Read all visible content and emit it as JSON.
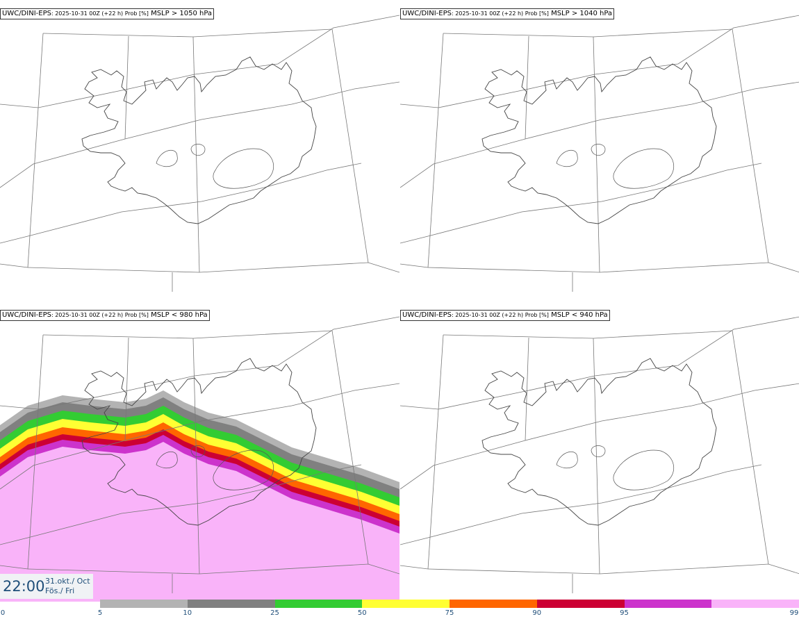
{
  "panels": [
    {
      "model": "UWC/DINI-EPS",
      "run": ": 2025-10-31 00Z (+22 h) Prob [%]",
      "threshold": "MSLP > 1050 hPa",
      "filled": false
    },
    {
      "model": "UWC/DINI-EPS",
      "run": ": 2025-10-31 00Z (+22 h) Prob [%]",
      "threshold": "MSLP > 1040 hPa",
      "filled": false
    },
    {
      "model": "UWC/DINI-EPS",
      "run": ": 2025-10-31 00Z (+22 h) Prob [%]",
      "threshold": "MSLP < 980 hPa",
      "filled": true
    },
    {
      "model": "UWC/DINI-EPS",
      "run": ": 2025-10-31 00Z (+22 h) Prob [%]",
      "threshold": "MSLP < 940 hPa",
      "filled": false
    }
  ],
  "valid_time": {
    "time": "22:00",
    "date": "31.okt./ Oct",
    "day": "Fös./ Fri"
  },
  "colorbar": {
    "ticks": [
      "0",
      "5",
      "10",
      "25",
      "50",
      "75",
      "90",
      "95",
      "99"
    ],
    "colors": [
      "#b3b3b3",
      "#808080",
      "#33cc33",
      "#ffff33",
      "#ff6600",
      "#cc0033",
      "#cc33cc",
      "#f9b3f9"
    ]
  }
}
